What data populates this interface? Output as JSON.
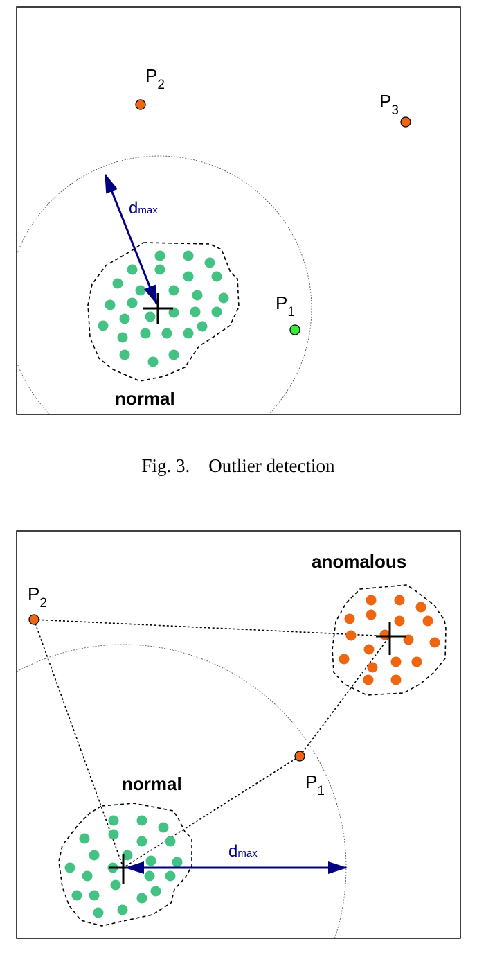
{
  "figure_top": {
    "cluster_label": "normal",
    "distance_label": {
      "main": "d",
      "sub": "max"
    },
    "points": [
      {
        "name": "P",
        "sub": "1",
        "status": "normal"
      },
      {
        "name": "P",
        "sub": "2",
        "status": "outlier"
      },
      {
        "name": "P",
        "sub": "3",
        "status": "outlier"
      }
    ],
    "caption": "Fig. 3.    Outlier detection"
  },
  "figure_bottom": {
    "cluster_labels": {
      "normal": "normal",
      "anomalous": "anomalous"
    },
    "distance_label": {
      "main": "d",
      "sub": "max"
    },
    "points": [
      {
        "name": "P",
        "sub": "1",
        "status": "anomalous"
      },
      {
        "name": "P",
        "sub": "2",
        "status": "anomalous"
      }
    ]
  },
  "colors": {
    "normal_cluster": "#44c283",
    "outlier_point": "#ee6611",
    "normal_point": "#33ee33",
    "arrow": "#000080"
  }
}
